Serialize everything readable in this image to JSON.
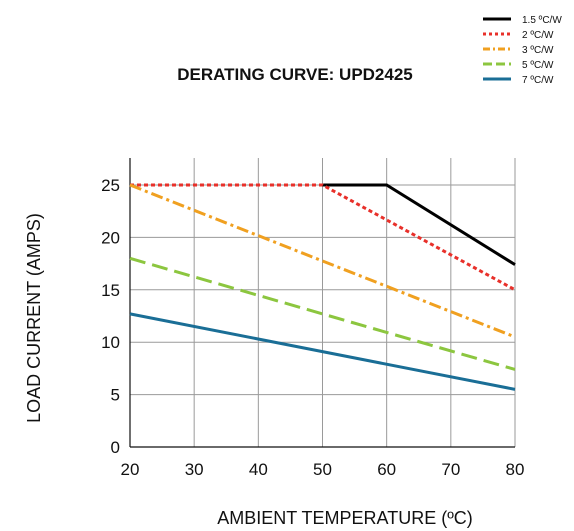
{
  "chart_data": {
    "type": "line",
    "title": "DERATING CURVE: UPD2425",
    "xlabel": "AMBIENT TEMPERATURE (ºC)",
    "ylabel": "LOAD CURRENT (AMPS)",
    "xlim": [
      20,
      80
    ],
    "ylim": [
      0,
      25
    ],
    "x_ticks": [
      "20",
      "30",
      "40",
      "50",
      "60",
      "70",
      "80"
    ],
    "y_ticks": [
      "0",
      "5",
      "10",
      "15",
      "20",
      "25"
    ],
    "grid": true,
    "legend_position": "top-right",
    "series": [
      {
        "name": "1.5 ºC/W",
        "color": "#000000",
        "dash": "solid",
        "points": [
          [
            50,
            25
          ],
          [
            60,
            25
          ],
          [
            80,
            17.4
          ]
        ]
      },
      {
        "name": "2 ºC/W",
        "color": "#e8302a",
        "dash": "dotted",
        "points": [
          [
            20,
            25
          ],
          [
            50,
            25
          ],
          [
            80,
            15
          ]
        ]
      },
      {
        "name": "3 ºC/W",
        "color": "#f0a020",
        "dash": "dashdot",
        "points": [
          [
            20,
            25
          ],
          [
            80,
            10.5
          ]
        ]
      },
      {
        "name": "5 ºC/W",
        "color": "#8cc63f",
        "dash": "dashed",
        "points": [
          [
            20,
            18
          ],
          [
            80,
            7.4
          ]
        ]
      },
      {
        "name": "7 ºC/W",
        "color": "#1a6e96",
        "dash": "solid",
        "points": [
          [
            20,
            12.7
          ],
          [
            80,
            5.5
          ]
        ]
      }
    ]
  }
}
